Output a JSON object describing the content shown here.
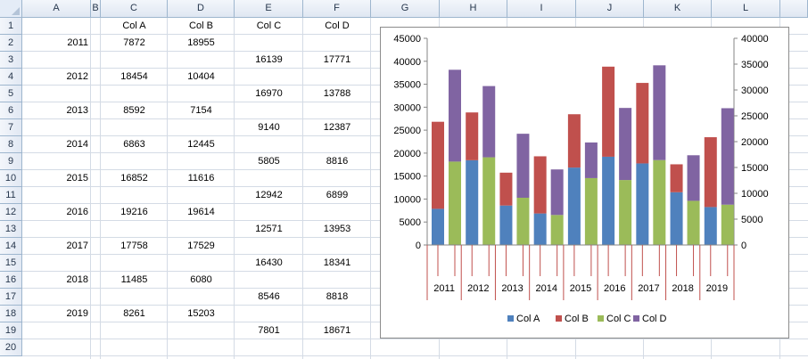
{
  "columns": [
    "A",
    "B",
    "C",
    "D",
    "E",
    "F",
    "G",
    "H",
    "I",
    "J",
    "K",
    "L"
  ],
  "rows": [
    "1",
    "2",
    "3",
    "4",
    "5",
    "6",
    "7",
    "8",
    "9",
    "10",
    "11",
    "12",
    "13",
    "14",
    "15",
    "16",
    "17",
    "18",
    "19",
    "20"
  ],
  "headers": {
    "C": "Col A",
    "D": "Col B",
    "E": "Col C",
    "F": "Col D"
  },
  "table": [
    {
      "row": 2,
      "year": "2011",
      "colA": "7872",
      "colB": "18955"
    },
    {
      "row": 3,
      "colC": "16139",
      "colD": "17771"
    },
    {
      "row": 4,
      "year": "2012",
      "colA": "18454",
      "colB": "10404"
    },
    {
      "row": 5,
      "colC": "16970",
      "colD": "13788"
    },
    {
      "row": 6,
      "year": "2013",
      "colA": "8592",
      "colB": "7154"
    },
    {
      "row": 7,
      "colC": "9140",
      "colD": "12387"
    },
    {
      "row": 8,
      "year": "2014",
      "colA": "6863",
      "colB": "12445"
    },
    {
      "row": 9,
      "colC": "5805",
      "colD": "8816"
    },
    {
      "row": 10,
      "year": "2015",
      "colA": "16852",
      "colB": "11616"
    },
    {
      "row": 11,
      "colC": "12942",
      "colD": "6899"
    },
    {
      "row": 12,
      "year": "2016",
      "colA": "19216",
      "colB": "19614"
    },
    {
      "row": 13,
      "colC": "12571",
      "colD": "13953"
    },
    {
      "row": 14,
      "year": "2017",
      "colA": "17758",
      "colB": "17529"
    },
    {
      "row": 15,
      "colC": "16430",
      "colD": "18341"
    },
    {
      "row": 16,
      "year": "2018",
      "colA": "11485",
      "colB": "6080"
    },
    {
      "row": 17,
      "colC": "8546",
      "colD": "8818"
    },
    {
      "row": 18,
      "year": "2019",
      "colA": "8261",
      "colB": "15203"
    },
    {
      "row": 19,
      "colC": "7801",
      "colD": "18671"
    }
  ],
  "colors": {
    "colA": "#4f81bd",
    "colB": "#c0504d",
    "colC": "#9bbb59",
    "colD": "#8064a2",
    "gridline": "#d4dbe5",
    "header_fill": "#dfe7f2"
  },
  "chart_data": {
    "type": "bar",
    "stacked": true,
    "categories": [
      "2011",
      "2012",
      "2013",
      "2014",
      "2015",
      "2016",
      "2017",
      "2018",
      "2019"
    ],
    "series": [
      {
        "name": "Col A",
        "axis": "primary",
        "values": [
          7872,
          18454,
          8592,
          6863,
          16852,
          19216,
          17758,
          11485,
          8261
        ]
      },
      {
        "name": "Col B",
        "axis": "primary",
        "values": [
          18955,
          10404,
          7154,
          12445,
          11616,
          19614,
          17529,
          6080,
          15203
        ]
      },
      {
        "name": "Col C",
        "axis": "secondary",
        "values": [
          16139,
          16970,
          9140,
          5805,
          12942,
          12571,
          16430,
          8546,
          7801
        ]
      },
      {
        "name": "Col D",
        "axis": "secondary",
        "values": [
          17771,
          13788,
          12387,
          8816,
          6899,
          13953,
          18341,
          8818,
          18671
        ]
      }
    ],
    "ylim": [
      0,
      45000
    ],
    "y_ticks": [
      "0",
      "5000",
      "10000",
      "15000",
      "20000",
      "25000",
      "30000",
      "35000",
      "40000",
      "45000"
    ],
    "y2lim": [
      0,
      40000
    ],
    "y2_ticks": [
      "0",
      "5000",
      "10000",
      "15000",
      "20000",
      "25000",
      "30000",
      "35000",
      "40000"
    ],
    "legend": "bottom",
    "grid": false
  }
}
